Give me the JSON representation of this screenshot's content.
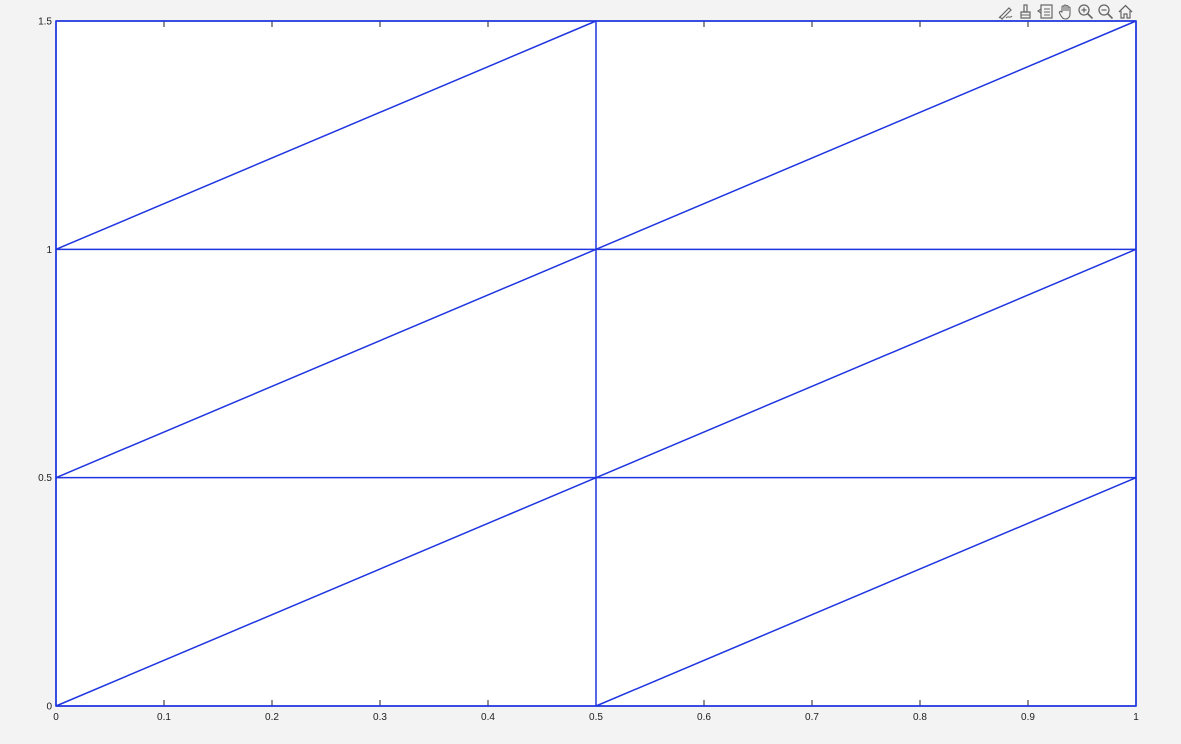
{
  "toolbar": {
    "buttons": [
      {
        "name": "edit-icon"
      },
      {
        "name": "brush-icon"
      },
      {
        "name": "datatip-icon"
      },
      {
        "name": "pan-icon"
      },
      {
        "name": "zoom-in-icon"
      },
      {
        "name": "zoom-out-icon"
      },
      {
        "name": "home-icon"
      }
    ]
  },
  "chart_data": {
    "type": "line",
    "title": "",
    "xlabel": "",
    "ylabel": "",
    "xlim": [
      0,
      1
    ],
    "ylim": [
      0,
      1.5
    ],
    "grid": false,
    "line_color": "#1f35e0",
    "x_ticks": [
      0,
      0.1,
      0.2,
      0.3,
      0.4,
      0.5,
      0.6,
      0.7,
      0.8,
      0.9,
      1
    ],
    "x_tick_labels": [
      "0",
      "0.1",
      "0.2",
      "0.3",
      "0.4",
      "0.5",
      "0.6",
      "0.7",
      "0.8",
      "0.9",
      "1"
    ],
    "y_ticks": [
      0,
      0.5,
      1,
      1.5
    ],
    "y_tick_labels": [
      "0",
      "0.5",
      "1",
      "1.5"
    ],
    "segments": [
      {
        "x": [
          0,
          1
        ],
        "y": [
          0,
          0
        ]
      },
      {
        "x": [
          0,
          1
        ],
        "y": [
          0.5,
          0.5
        ]
      },
      {
        "x": [
          0,
          1
        ],
        "y": [
          1,
          1
        ]
      },
      {
        "x": [
          0,
          1
        ],
        "y": [
          1.5,
          1.5
        ]
      },
      {
        "x": [
          0,
          0
        ],
        "y": [
          0,
          1.5
        ]
      },
      {
        "x": [
          0.5,
          0.5
        ],
        "y": [
          0,
          1.5
        ]
      },
      {
        "x": [
          1,
          1
        ],
        "y": [
          0,
          1.5
        ]
      },
      {
        "x": [
          0,
          0.5
        ],
        "y": [
          0,
          0.5
        ]
      },
      {
        "x": [
          0,
          0.5
        ],
        "y": [
          0.5,
          1
        ]
      },
      {
        "x": [
          0,
          0.5
        ],
        "y": [
          1,
          1.5
        ]
      },
      {
        "x": [
          0.5,
          1
        ],
        "y": [
          0,
          0.5
        ]
      },
      {
        "x": [
          0.5,
          1
        ],
        "y": [
          0.5,
          1
        ]
      },
      {
        "x": [
          0.5,
          1
        ],
        "y": [
          1,
          1.5
        ]
      }
    ]
  }
}
